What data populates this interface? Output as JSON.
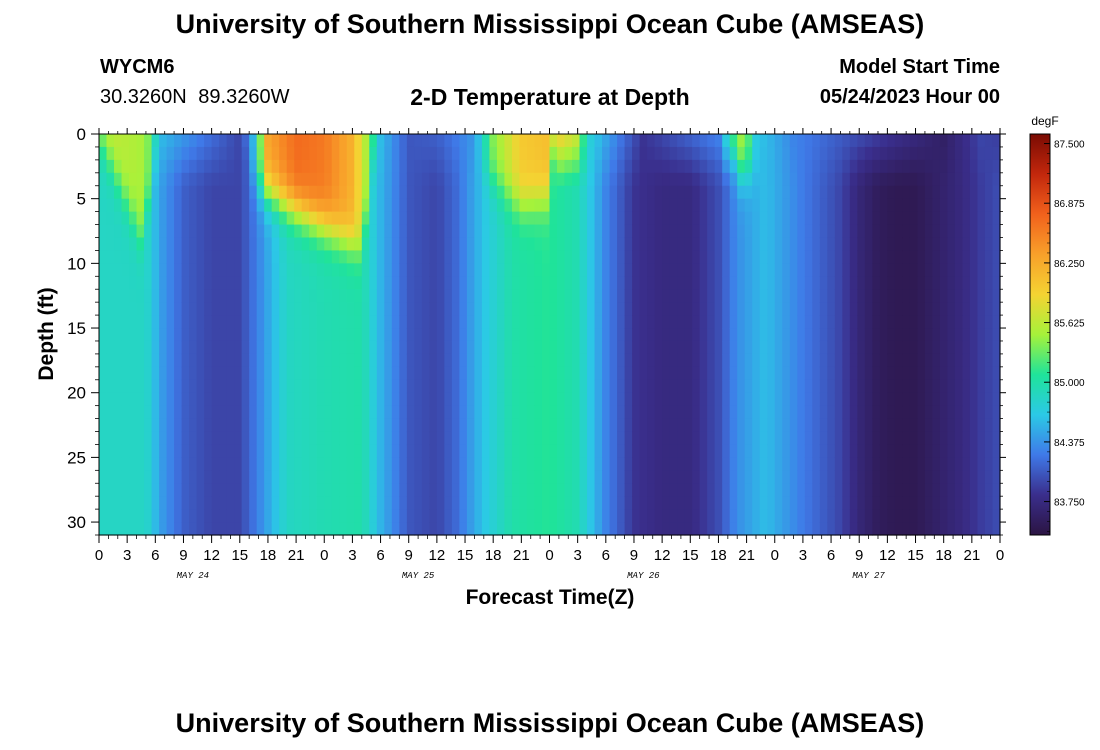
{
  "header": {
    "title": "University of Southern Mississippi Ocean Cube (AMSEAS)",
    "station_id": "WYCM6",
    "coordinates": "30.3260N  89.3260W",
    "subtitle": "2-D Temperature at Depth",
    "model_start_label": "Model Start Time",
    "model_start_value": "05/24/2023 Hour 00"
  },
  "footer": {
    "title": "University of Southern Mississippi Ocean Cube (AMSEAS)"
  },
  "colors": {
    "colormap": [
      "#2b1442",
      "#3a2e8c",
      "#3f79e8",
      "#2bc9e6",
      "#1fe39a",
      "#a6f23a",
      "#f4d332",
      "#f8a02a",
      "#f2611c",
      "#c2270c",
      "#7a0b03"
    ]
  },
  "chart_data": {
    "type": "heatmap",
    "xlabel": "Forecast Time(Z)",
    "ylabel": "Depth (ft)",
    "colorbar_label": "degF",
    "x_tick_labels": [
      "0",
      "3",
      "6",
      "9",
      "12",
      "15",
      "18",
      "21",
      "0",
      "3",
      "6",
      "9",
      "12",
      "15",
      "18",
      "21",
      "0",
      "3",
      "6",
      "9",
      "12",
      "15",
      "18",
      "21",
      "0",
      "3",
      "6",
      "9",
      "12",
      "15",
      "18",
      "21",
      "0"
    ],
    "x_tick_hours": [
      0,
      3,
      6,
      9,
      12,
      15,
      18,
      21,
      24,
      27,
      30,
      33,
      36,
      39,
      42,
      45,
      48,
      51,
      54,
      57,
      60,
      63,
      66,
      69,
      72,
      75,
      78,
      81,
      84,
      87,
      90,
      93,
      96
    ],
    "date_labels": [
      {
        "hour": 10,
        "label": "MAY 24"
      },
      {
        "hour": 34,
        "label": "MAY 25"
      },
      {
        "hour": 58,
        "label": "MAY 26"
      },
      {
        "hour": 82,
        "label": "MAY 27"
      }
    ],
    "xlim": [
      0,
      96
    ],
    "ylim": [
      31,
      0
    ],
    "y_ticks": [
      0,
      5,
      10,
      15,
      20,
      25,
      30
    ],
    "y_tick_labels": [
      "0",
      "5",
      "10",
      "15",
      "20",
      "25",
      "30"
    ],
    "colorbar_ticks": [
      87.5,
      86.875,
      86.25,
      85.625,
      85.0,
      84.375,
      83.75
    ],
    "colorbar_tick_labels": [
      "87.500",
      "86.875",
      "86.250",
      "85.625",
      "85.000",
      "84.375",
      "83.750"
    ],
    "colorbar_range": [
      83.4,
      87.6
    ],
    "bottom_temperature_by_hour": {
      "hours": [
        0,
        5,
        6.5,
        9,
        12,
        15,
        17,
        20,
        24,
        28,
        30,
        33,
        36,
        38,
        41,
        44,
        48,
        51,
        54,
        57,
        60,
        63,
        66,
        68,
        71,
        75,
        79,
        81,
        83,
        85,
        87,
        89,
        92,
        94,
        96
      ],
      "values": [
        84.85,
        84.85,
        84.45,
        84.1,
        83.95,
        83.95,
        84.3,
        84.85,
        84.95,
        85.0,
        84.55,
        84.05,
        83.95,
        84.15,
        84.65,
        85.0,
        85.1,
        84.95,
        84.3,
        83.85,
        83.75,
        83.75,
        84.0,
        84.35,
        84.6,
        84.25,
        83.95,
        83.7,
        83.55,
        83.5,
        83.5,
        83.6,
        83.75,
        83.9,
        84.0
      ]
    },
    "surface_temperature_by_hour": {
      "hours": [
        0,
        5,
        6.5,
        15,
        16.5,
        18,
        21,
        24,
        27,
        29,
        30,
        33,
        36,
        40,
        42,
        45,
        48,
        51,
        52,
        58,
        66,
        67,
        68,
        69,
        70,
        74,
        90,
        94,
        96
      ],
      "values": [
        85.7,
        85.5,
        84.6,
        83.95,
        84.6,
        86.3,
        86.7,
        86.6,
        86.2,
        85.3,
        84.6,
        84.05,
        84.1,
        84.4,
        85.4,
        86.0,
        86.1,
        85.7,
        84.8,
        83.85,
        84.3,
        84.9,
        85.6,
        85.4,
        84.7,
        84.3,
        83.6,
        83.95,
        83.9
      ]
    },
    "warm_layer_depth_by_hour": {
      "hours": [
        0,
        5,
        5.5,
        15.5,
        16.5,
        20,
        26,
        28,
        29.5,
        40.5,
        41,
        45,
        48,
        48.5,
        67,
        68,
        70,
        71,
        96
      ],
      "values": [
        0,
        9,
        0,
        0,
        4,
        5.5,
        8,
        9,
        0,
        0,
        3,
        5.5,
        5,
        0,
        0,
        3,
        3,
        0,
        0
      ]
    }
  }
}
